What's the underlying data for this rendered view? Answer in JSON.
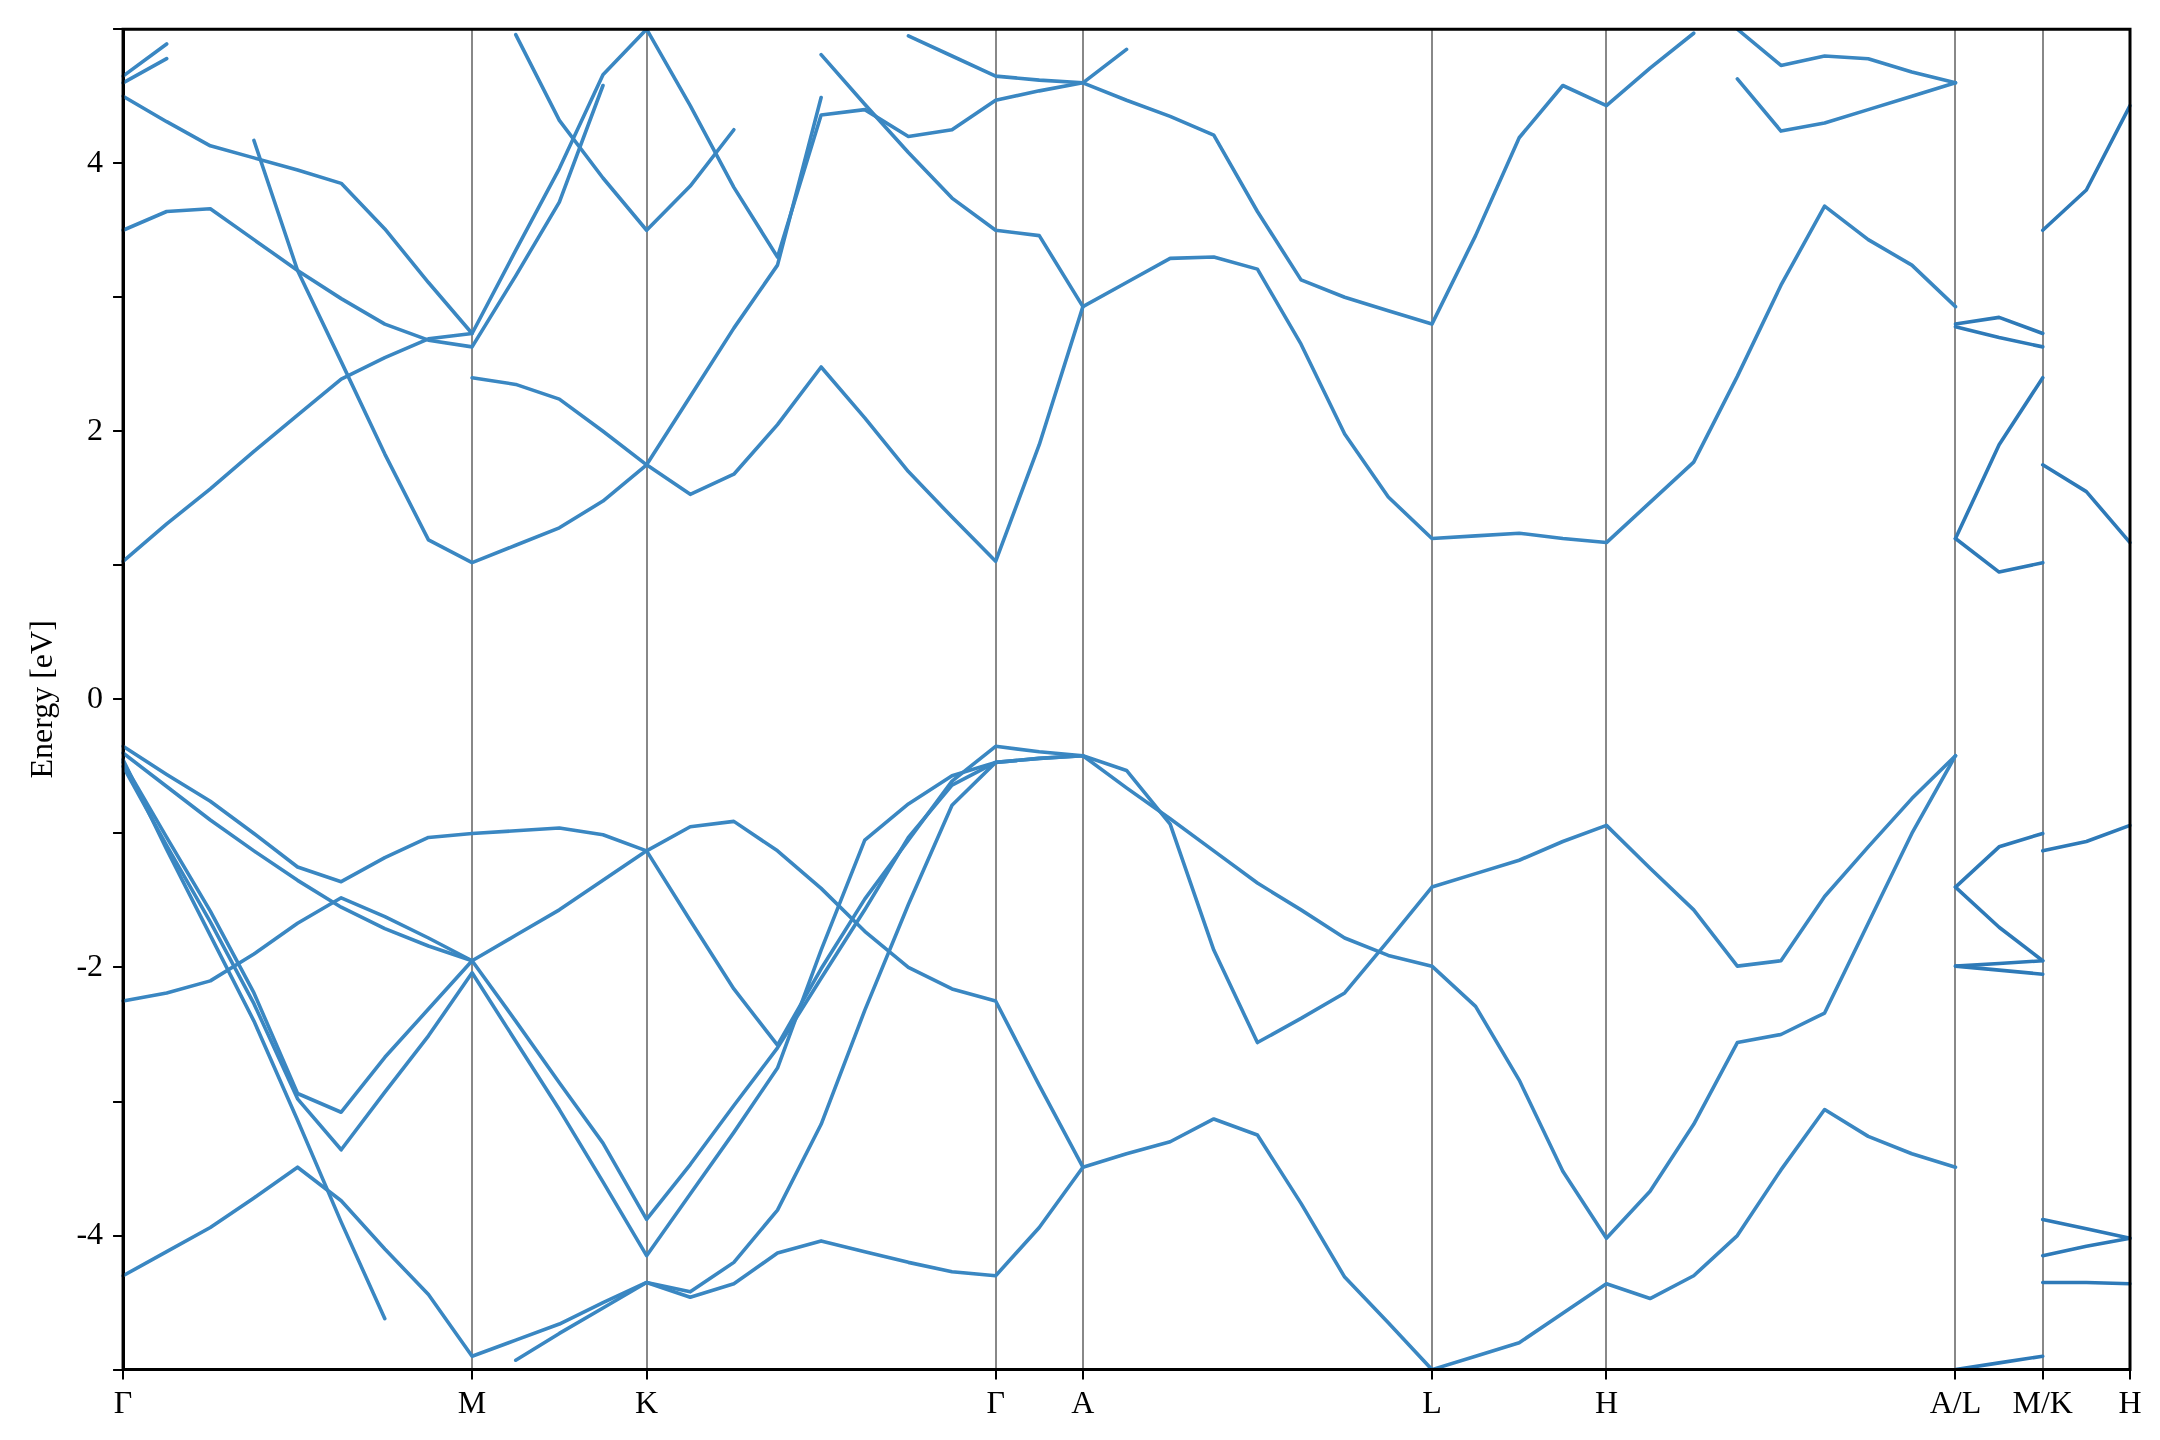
{
  "chart_data": {
    "type": "line",
    "ylabel": "Energy [eV]",
    "ylim": [
      -5,
      5
    ],
    "categories": [
      "Γ",
      null,
      null,
      null,
      null,
      null,
      null,
      null,
      "M",
      null,
      null,
      null,
      "K",
      null,
      null,
      null,
      null,
      null,
      null,
      null,
      "Γ",
      null,
      "A",
      null,
      null,
      null,
      null,
      null,
      null,
      null,
      "L",
      null,
      null,
      null,
      "H",
      null,
      null,
      null,
      null,
      null,
      null,
      null,
      "A/L",
      null,
      "M/K",
      null,
      "H"
    ],
    "yticks": [
      {
        "value": -5,
        "label": null
      },
      -4,
      {
        "value": -3,
        "label": null
      },
      -2,
      {
        "value": -1,
        "label": null
      },
      0,
      {
        "value": 1,
        "label": null
      },
      2,
      {
        "value": 3,
        "label": null
      },
      4,
      {
        "value": 5,
        "label": null
      }
    ],
    "grid": "x",
    "legend": false,
    "marker": "none",
    "line_style": "solid",
    "series": [
      {
        "color": "#3a87c2",
        "values": [
          -0.35,
          -0.56,
          -0.76,
          -1.0,
          -1.25,
          -1.36,
          -1.18,
          -1.03,
          -1.0,
          -0.98,
          -0.96,
          -1.01,
          -1.13,
          -0.95,
          -0.91,
          -1.13,
          -1.41,
          -1.73,
          -2.0,
          -2.16,
          -2.25,
          -2.88,
          -3.49,
          -3.39,
          -3.3,
          -3.13,
          -3.25,
          -3.76,
          -4.31,
          -4.65,
          -5.0,
          -4.9,
          -4.8,
          -4.58,
          -4.36,
          -4.47,
          -4.3,
          -4.0,
          -3.51,
          -3.06,
          -3.26,
          -3.39,
          -3.49,
          null,
          null,
          null,
          null
        ]
      },
      {
        "color": "#3a87c2",
        "values": [
          -0.4,
          -0.65,
          -0.9,
          -1.13,
          -1.35,
          -1.55,
          -1.71,
          -1.84,
          -1.95,
          -1.76,
          -1.57,
          -1.35,
          -1.13,
          -1.65,
          -2.16,
          -2.58,
          -2.01,
          -1.49,
          -1.05,
          -0.61,
          -0.35,
          -0.39,
          -0.42,
          -0.66,
          -0.89,
          -1.13,
          -1.37,
          -1.57,
          -1.78,
          -1.91,
          -1.99,
          -2.29,
          -2.84,
          -3.52,
          -4.02,
          -3.67,
          -3.17,
          -2.56,
          -2.5,
          -2.34,
          -1.67,
          -1.0,
          -0.42,
          null,
          null,
          null,
          null
        ]
      },
      {
        "color": "#3a87c2",
        "values": [
          -0.47,
          -1.03,
          -1.58,
          -2.19,
          -2.94,
          -3.08,
          -2.67,
          -2.31,
          -1.95,
          -2.4,
          -2.86,
          -3.31,
          -3.88,
          -3.47,
          -3.03,
          -2.6,
          -2.08,
          -1.57,
          -1.03,
          -0.64,
          -0.47,
          -0.44,
          -0.42,
          -0.53,
          -0.93,
          -1.87,
          -2.56,
          -2.38,
          -2.19,
          -1.8,
          -1.4,
          -1.3,
          -1.2,
          -1.06,
          -0.94,
          -1.26,
          -1.57,
          -1.99,
          -1.95,
          -1.47,
          -1.1,
          -0.74,
          -0.42,
          null,
          null,
          null,
          null
        ]
      },
      {
        "color": "#3a87c2",
        "values": [
          -0.5,
          -1.09,
          -1.66,
          -2.27,
          -2.98,
          -3.36,
          -2.93,
          -2.51,
          -2.04,
          -2.55,
          -3.06,
          -3.6,
          -4.15,
          -3.69,
          -3.23,
          -2.75,
          -1.87,
          -1.05,
          -0.78,
          -0.57,
          -0.47,
          -0.44,
          -0.42,
          null,
          null,
          null,
          null,
          null,
          null,
          null,
          null,
          null,
          null,
          null,
          null,
          null,
          null,
          null,
          null,
          null,
          null,
          null,
          null,
          null,
          null,
          null,
          null
        ]
      },
      {
        "color": "#3a87c2",
        "values": [
          -2.25,
          -2.19,
          -2.1,
          -1.9,
          -1.67,
          -1.48,
          -1.62,
          -1.78,
          -1.95,
          null,
          null,
          null,
          null,
          null,
          null,
          null,
          null,
          null,
          null,
          null,
          null,
          null,
          null,
          null,
          null,
          null,
          null,
          null,
          null,
          null,
          null,
          null,
          null,
          null,
          null,
          null,
          null,
          null,
          null,
          null,
          null,
          null,
          null,
          null,
          null,
          null,
          null
        ]
      },
      {
        "color": "#3a87c2",
        "values": [
          -4.3,
          -4.12,
          -3.94,
          -3.72,
          -3.49,
          -3.74,
          -4.1,
          -4.44,
          -4.9,
          -4.78,
          -4.66,
          -4.5,
          -4.35,
          -4.46,
          -4.36,
          -4.13,
          -4.04,
          -4.12,
          -4.2,
          -4.27,
          -4.3,
          -3.94,
          -3.49,
          null,
          null,
          null,
          null,
          null,
          null,
          null,
          null,
          null,
          null,
          null,
          null,
          null,
          null,
          null,
          null,
          null,
          null,
          null,
          null,
          null,
          null,
          null,
          null
        ]
      },
      {
        "color": "#3a87c2",
        "values": [
          -0.45,
          -1.12,
          -1.76,
          -2.4,
          -3.14,
          -3.9,
          -4.62,
          null,
          null,
          -4.93,
          -4.73,
          -4.54,
          -4.35,
          -4.42,
          -4.2,
          -3.81,
          -3.17,
          -2.32,
          -1.53,
          -0.79,
          -0.47,
          null,
          null,
          null,
          null,
          null,
          null,
          null,
          null,
          null,
          null,
          null,
          null,
          null,
          null,
          null,
          null,
          null,
          null,
          null,
          null,
          null,
          null,
          null,
          null,
          null,
          null
        ]
      },
      {
        "color": "#3a87c2",
        "values": [
          1.03,
          1.31,
          1.57,
          1.85,
          2.12,
          2.39,
          2.55,
          2.69,
          2.73,
          3.35,
          3.96,
          4.66,
          5.0,
          4.43,
          3.82,
          3.3,
          4.36,
          4.4,
          4.2,
          4.25,
          4.47,
          4.54,
          4.6,
          4.85,
          null,
          null,
          null,
          null,
          null,
          null,
          null,
          null,
          null,
          null,
          null,
          null,
          null,
          null,
          null,
          null,
          null,
          null,
          null,
          null,
          null,
          null,
          null
        ]
      },
      {
        "color": "#3a87c2",
        "values": [
          3.5,
          3.64,
          3.66,
          3.43,
          3.2,
          2.99,
          2.8,
          2.68,
          2.63,
          3.16,
          3.71,
          4.58,
          null,
          null,
          null,
          null,
          null,
          null,
          null,
          null,
          null,
          null,
          null,
          null,
          null,
          null,
          null,
          null,
          null,
          null,
          null,
          null,
          null,
          null,
          null,
          null,
          null,
          null,
          null,
          null,
          null,
          null,
          null,
          null,
          null,
          null,
          null
        ]
      },
      {
        "color": "#3a87c2",
        "values": [
          null,
          null,
          null,
          4.17,
          3.2,
          2.52,
          1.83,
          1.19,
          1.02,
          1.15,
          1.28,
          1.48,
          1.75,
          2.26,
          2.77,
          3.24,
          4.49,
          null,
          null,
          null,
          null,
          null,
          null,
          null,
          null,
          null,
          null,
          null,
          null,
          null,
          null,
          null,
          null,
          null,
          null,
          null,
          null,
          null,
          null,
          null,
          null,
          null,
          null,
          null,
          null,
          null,
          null
        ]
      },
      {
        "color": "#3a87c2",
        "values": [
          4.5,
          4.31,
          4.13,
          4.04,
          3.95,
          3.85,
          3.51,
          3.11,
          2.73,
          null,
          null,
          null,
          null,
          null,
          null,
          null,
          null,
          null,
          null,
          null,
          null,
          null,
          null,
          null,
          null,
          null,
          null,
          null,
          null,
          null,
          null,
          null,
          null,
          null,
          null,
          null,
          null,
          null,
          null,
          null,
          null,
          null,
          null,
          null,
          null,
          null,
          null
        ]
      },
      {
        "color": "#3a87c2",
        "values": [
          null,
          null,
          null,
          null,
          null,
          null,
          null,
          null,
          2.4,
          2.35,
          2.24,
          2.0,
          1.75,
          1.53,
          1.68,
          2.05,
          2.48,
          2.1,
          1.7,
          1.36,
          1.03,
          1.9,
          2.93,
          3.11,
          3.29,
          3.3,
          3.21,
          2.65,
          1.98,
          1.51,
          1.2,
          1.22,
          1.24,
          1.2,
          1.17,
          1.47,
          1.77,
          2.41,
          3.09,
          3.68,
          3.43,
          3.24,
          2.93,
          null,
          null,
          null,
          null
        ]
      },
      {
        "color": "#3a87c2",
        "values": [
          null,
          null,
          null,
          null,
          null,
          null,
          null,
          null,
          null,
          4.96,
          4.32,
          3.89,
          3.5,
          3.83,
          4.25,
          null,
          null,
          null,
          null,
          null,
          null,
          null,
          null,
          null,
          null,
          null,
          null,
          null,
          null,
          null,
          null,
          null,
          null,
          null,
          null,
          null,
          null,
          null,
          null,
          null,
          null,
          null,
          null,
          null,
          null,
          null,
          null
        ]
      },
      {
        "color": "#3a87c2",
        "values": [
          null,
          null,
          null,
          null,
          null,
          null,
          null,
          null,
          null,
          null,
          null,
          null,
          null,
          null,
          null,
          null,
          4.81,
          4.44,
          4.08,
          3.74,
          3.5,
          3.46,
          2.93,
          null,
          null,
          null,
          null,
          null,
          null,
          null,
          null,
          null,
          null,
          null,
          null,
          null,
          null,
          null,
          null,
          null,
          null,
          null,
          null,
          null,
          null,
          null,
          null
        ]
      },
      {
        "color": "#3a87c2",
        "values": [
          null,
          null,
          null,
          null,
          null,
          null,
          null,
          null,
          null,
          null,
          null,
          null,
          null,
          null,
          null,
          null,
          null,
          null,
          4.95,
          4.8,
          4.65,
          4.62,
          4.6,
          4.47,
          4.35,
          4.21,
          3.64,
          3.13,
          3.0,
          2.9,
          2.8,
          3.46,
          4.19,
          4.58,
          4.43,
          4.71,
          4.97,
          null,
          null,
          null,
          null,
          null,
          null,
          null,
          null,
          null,
          null
        ]
      },
      {
        "color": "#3a87c2",
        "values": [
          null,
          null,
          null,
          null,
          null,
          null,
          null,
          null,
          null,
          null,
          null,
          null,
          null,
          null,
          null,
          null,
          null,
          null,
          null,
          null,
          null,
          null,
          null,
          null,
          null,
          null,
          null,
          null,
          null,
          null,
          null,
          null,
          null,
          null,
          null,
          null,
          null,
          5.0,
          4.73,
          4.8,
          4.78,
          4.68,
          4.6,
          null,
          null,
          null,
          null
        ]
      },
      {
        "color": "#3a87c2",
        "values": [
          null,
          null,
          null,
          null,
          null,
          null,
          null,
          null,
          null,
          null,
          null,
          null,
          null,
          null,
          null,
          null,
          null,
          null,
          null,
          null,
          null,
          null,
          null,
          null,
          null,
          null,
          null,
          null,
          null,
          null,
          null,
          null,
          null,
          null,
          null,
          null,
          null,
          4.63,
          4.24,
          4.3,
          4.4,
          4.5,
          4.6,
          null,
          null,
          null,
          null
        ]
      },
      {
        "color": "#3a87c2",
        "values": [
          4.6,
          4.78,
          null,
          null,
          null,
          null,
          null,
          null,
          null,
          null,
          null,
          null,
          null,
          null,
          null,
          null,
          null,
          null,
          null,
          null,
          null,
          null,
          null,
          null,
          null,
          null,
          null,
          null,
          null,
          null,
          null,
          null,
          null,
          null,
          null,
          null,
          null,
          null,
          null,
          null,
          null,
          null,
          null,
          null,
          null,
          null,
          null
        ]
      },
      {
        "color": "#3a87c2",
        "values": [
          4.65,
          4.89,
          null,
          null,
          null,
          null,
          null,
          null,
          null,
          null,
          null,
          null,
          null,
          null,
          null,
          null,
          null,
          null,
          null,
          null,
          null,
          null,
          null,
          null,
          null,
          null,
          null,
          null,
          null,
          null,
          null,
          null,
          null,
          null,
          null,
          null,
          null,
          null,
          null,
          null,
          null,
          null,
          null,
          null,
          null,
          null,
          null
        ]
      },
      {
        "color": "#2e7ab8",
        "values": [
          null,
          null,
          null,
          null,
          null,
          null,
          null,
          null,
          null,
          null,
          null,
          null,
          null,
          null,
          null,
          null,
          null,
          null,
          null,
          null,
          null,
          null,
          null,
          null,
          null,
          null,
          null,
          null,
          null,
          null,
          null,
          null,
          null,
          null,
          null,
          null,
          null,
          null,
          null,
          null,
          null,
          null,
          -1.99,
          -2.02,
          -2.05,
          null,
          null
        ]
      },
      {
        "color": "#2e7ab8",
        "values": [
          null,
          null,
          null,
          null,
          null,
          null,
          null,
          null,
          null,
          null,
          null,
          null,
          null,
          null,
          null,
          null,
          null,
          null,
          null,
          null,
          null,
          null,
          null,
          null,
          null,
          null,
          null,
          null,
          null,
          null,
          null,
          null,
          null,
          null,
          null,
          null,
          null,
          null,
          null,
          null,
          null,
          null,
          -1.4,
          -1.1,
          -1.0,
          null,
          null
        ]
      },
      {
        "color": "#2e7ab8",
        "values": [
          null,
          null,
          null,
          null,
          null,
          null,
          null,
          null,
          null,
          null,
          null,
          null,
          null,
          null,
          null,
          null,
          null,
          null,
          null,
          null,
          null,
          null,
          null,
          null,
          null,
          null,
          null,
          null,
          null,
          null,
          null,
          null,
          null,
          null,
          null,
          null,
          null,
          null,
          null,
          null,
          null,
          null,
          -1.99,
          -1.97,
          -1.95,
          null,
          null
        ]
      },
      {
        "color": "#2e7ab8",
        "values": [
          null,
          null,
          null,
          null,
          null,
          null,
          null,
          null,
          null,
          null,
          null,
          null,
          null,
          null,
          null,
          null,
          null,
          null,
          null,
          null,
          null,
          null,
          null,
          null,
          null,
          null,
          null,
          null,
          null,
          null,
          null,
          null,
          null,
          null,
          null,
          null,
          null,
          null,
          null,
          null,
          null,
          null,
          -1.4,
          -1.7,
          -1.95,
          null,
          null
        ]
      },
      {
        "color": "#2e7ab8",
        "values": [
          null,
          null,
          null,
          null,
          null,
          null,
          null,
          null,
          null,
          null,
          null,
          null,
          null,
          null,
          null,
          null,
          null,
          null,
          null,
          null,
          null,
          null,
          null,
          null,
          null,
          null,
          null,
          null,
          null,
          null,
          null,
          null,
          null,
          null,
          null,
          null,
          null,
          null,
          null,
          null,
          null,
          null,
          -5.0,
          -4.95,
          -4.9,
          null,
          null
        ]
      },
      {
        "color": "#2e7ab8",
        "values": [
          null,
          null,
          null,
          null,
          null,
          null,
          null,
          null,
          null,
          null,
          null,
          null,
          null,
          null,
          null,
          null,
          null,
          null,
          null,
          null,
          null,
          null,
          null,
          null,
          null,
          null,
          null,
          null,
          null,
          null,
          null,
          null,
          null,
          null,
          null,
          null,
          null,
          null,
          null,
          null,
          null,
          null,
          1.2,
          0.95,
          1.02,
          null,
          null
        ]
      },
      {
        "color": "#2e7ab8",
        "values": [
          null,
          null,
          null,
          null,
          null,
          null,
          null,
          null,
          null,
          null,
          null,
          null,
          null,
          null,
          null,
          null,
          null,
          null,
          null,
          null,
          null,
          null,
          null,
          null,
          null,
          null,
          null,
          null,
          null,
          null,
          null,
          null,
          null,
          null,
          null,
          null,
          null,
          null,
          null,
          null,
          null,
          null,
          2.8,
          2.85,
          2.73,
          null,
          null
        ]
      },
      {
        "color": "#2e7ab8",
        "values": [
          null,
          null,
          null,
          null,
          null,
          null,
          null,
          null,
          null,
          null,
          null,
          null,
          null,
          null,
          null,
          null,
          null,
          null,
          null,
          null,
          null,
          null,
          null,
          null,
          null,
          null,
          null,
          null,
          null,
          null,
          null,
          null,
          null,
          null,
          null,
          null,
          null,
          null,
          null,
          null,
          null,
          null,
          2.78,
          2.7,
          2.63,
          null,
          null
        ]
      },
      {
        "color": "#2e7ab8",
        "values": [
          null,
          null,
          null,
          null,
          null,
          null,
          null,
          null,
          null,
          null,
          null,
          null,
          null,
          null,
          null,
          null,
          null,
          null,
          null,
          null,
          null,
          null,
          null,
          null,
          null,
          null,
          null,
          null,
          null,
          null,
          null,
          null,
          null,
          null,
          null,
          null,
          null,
          null,
          null,
          null,
          null,
          null,
          1.2,
          1.9,
          2.4,
          null,
          null
        ]
      },
      {
        "color": "#2e7ab8",
        "values": [
          null,
          null,
          null,
          null,
          null,
          null,
          null,
          null,
          null,
          null,
          null,
          null,
          null,
          null,
          null,
          null,
          null,
          null,
          null,
          null,
          null,
          null,
          null,
          null,
          null,
          null,
          null,
          null,
          null,
          null,
          null,
          null,
          null,
          null,
          null,
          null,
          null,
          null,
          null,
          null,
          null,
          null,
          null,
          null,
          -4.15,
          -4.08,
          -4.02
        ]
      },
      {
        "color": "#2e7ab8",
        "values": [
          null,
          null,
          null,
          null,
          null,
          null,
          null,
          null,
          null,
          null,
          null,
          null,
          null,
          null,
          null,
          null,
          null,
          null,
          null,
          null,
          null,
          null,
          null,
          null,
          null,
          null,
          null,
          null,
          null,
          null,
          null,
          null,
          null,
          null,
          null,
          null,
          null,
          null,
          null,
          null,
          null,
          null,
          null,
          null,
          -1.13,
          -1.06,
          -0.94
        ]
      },
      {
        "color": "#2e7ab8",
        "values": [
          null,
          null,
          null,
          null,
          null,
          null,
          null,
          null,
          null,
          null,
          null,
          null,
          null,
          null,
          null,
          null,
          null,
          null,
          null,
          null,
          null,
          null,
          null,
          null,
          null,
          null,
          null,
          null,
          null,
          null,
          null,
          null,
          null,
          null,
          null,
          null,
          null,
          null,
          null,
          null,
          null,
          null,
          null,
          null,
          -3.88,
          -3.95,
          -4.02
        ]
      },
      {
        "color": "#2e7ab8",
        "values": [
          null,
          null,
          null,
          null,
          null,
          null,
          null,
          null,
          null,
          null,
          null,
          null,
          null,
          null,
          null,
          null,
          null,
          null,
          null,
          null,
          null,
          null,
          null,
          null,
          null,
          null,
          null,
          null,
          null,
          null,
          null,
          null,
          null,
          null,
          null,
          null,
          null,
          null,
          null,
          null,
          null,
          null,
          null,
          null,
          -4.35,
          -4.35,
          -4.36
        ]
      },
      {
        "color": "#2e7ab8",
        "values": [
          null,
          null,
          null,
          null,
          null,
          null,
          null,
          null,
          null,
          null,
          null,
          null,
          null,
          null,
          null,
          null,
          null,
          null,
          null,
          null,
          null,
          null,
          null,
          null,
          null,
          null,
          null,
          null,
          null,
          null,
          null,
          null,
          null,
          null,
          null,
          null,
          null,
          null,
          null,
          null,
          null,
          null,
          null,
          null,
          1.75,
          1.55,
          1.17
        ]
      },
      {
        "color": "#2e7ab8",
        "values": [
          null,
          null,
          null,
          null,
          null,
          null,
          null,
          null,
          null,
          null,
          null,
          null,
          null,
          null,
          null,
          null,
          null,
          null,
          null,
          null,
          null,
          null,
          null,
          null,
          null,
          null,
          null,
          null,
          null,
          null,
          null,
          null,
          null,
          null,
          null,
          null,
          null,
          null,
          null,
          null,
          null,
          null,
          null,
          null,
          3.5,
          3.8,
          4.43
        ]
      }
    ]
  }
}
